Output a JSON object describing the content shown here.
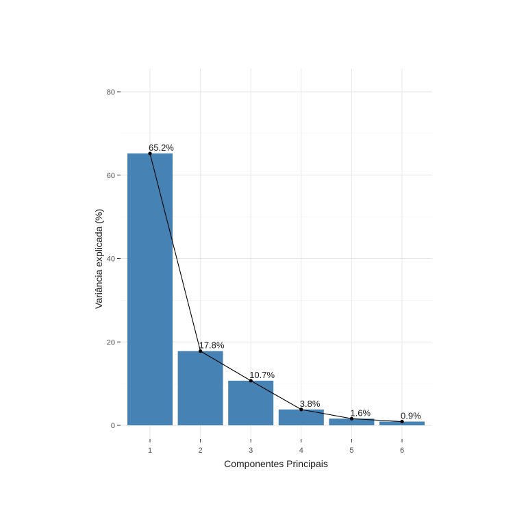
{
  "chart_data": {
    "type": "bar",
    "title": "",
    "xlabel": "Componentes Principais",
    "ylabel": "Variância explicada (%)",
    "categories": [
      "1",
      "2",
      "3",
      "4",
      "5",
      "6"
    ],
    "values": [
      65.2,
      17.8,
      10.7,
      3.8,
      1.6,
      0.9
    ],
    "data_labels": [
      "65.2%",
      "17.8%",
      "10.7%",
      "3.8%",
      "1.6%",
      "0.9%"
    ],
    "ylim": [
      0,
      80
    ],
    "yticks": [
      0,
      20,
      40,
      60,
      80
    ],
    "ytick_labels": [
      "0",
      "20",
      "40",
      "60",
      "80"
    ],
    "overlay": "line-with-points",
    "grid": true,
    "legend": "none",
    "colors": {
      "bar": "#4682B4",
      "line": "#000000",
      "point": "#000000"
    }
  }
}
